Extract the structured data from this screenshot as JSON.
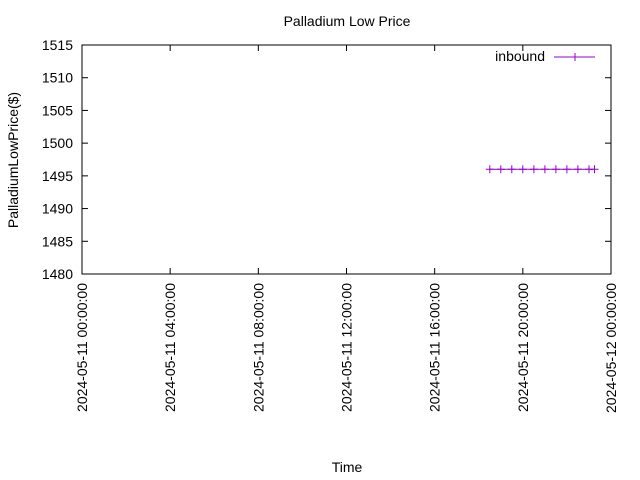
{
  "chart_data": {
    "type": "line",
    "title": "Palladium Low Price",
    "xlabel": "Time",
    "ylabel": "PalladiumLowPrice($)",
    "xlim": [
      "2024-05-11 00:00:00",
      "2024-05-12 00:00:00"
    ],
    "ylim": [
      1480,
      1515
    ],
    "x_ticks": [
      "2024-05-11 00:00:00",
      "2024-05-11 04:00:00",
      "2024-05-11 08:00:00",
      "2024-05-11 12:00:00",
      "2024-05-11 16:00:00",
      "2024-05-11 20:00:00",
      "2024-05-12 00:00:00"
    ],
    "y_ticks": [
      1480,
      1485,
      1490,
      1495,
      1500,
      1505,
      1510,
      1515
    ],
    "grid": false,
    "legend_position": "top-right",
    "series": [
      {
        "name": "inbound",
        "color": "#9400d3",
        "marker": "plus",
        "x": [
          "2024-05-11 18:30:00",
          "2024-05-11 19:00:00",
          "2024-05-11 19:30:00",
          "2024-05-11 20:00:00",
          "2024-05-11 20:30:00",
          "2024-05-11 21:00:00",
          "2024-05-11 21:30:00",
          "2024-05-11 22:00:00",
          "2024-05-11 22:30:00",
          "2024-05-11 23:00:00",
          "2024-05-11 23:15:00"
        ],
        "y": [
          1496,
          1496,
          1496,
          1496,
          1496,
          1496,
          1496,
          1496,
          1496,
          1496,
          1496
        ]
      }
    ]
  }
}
